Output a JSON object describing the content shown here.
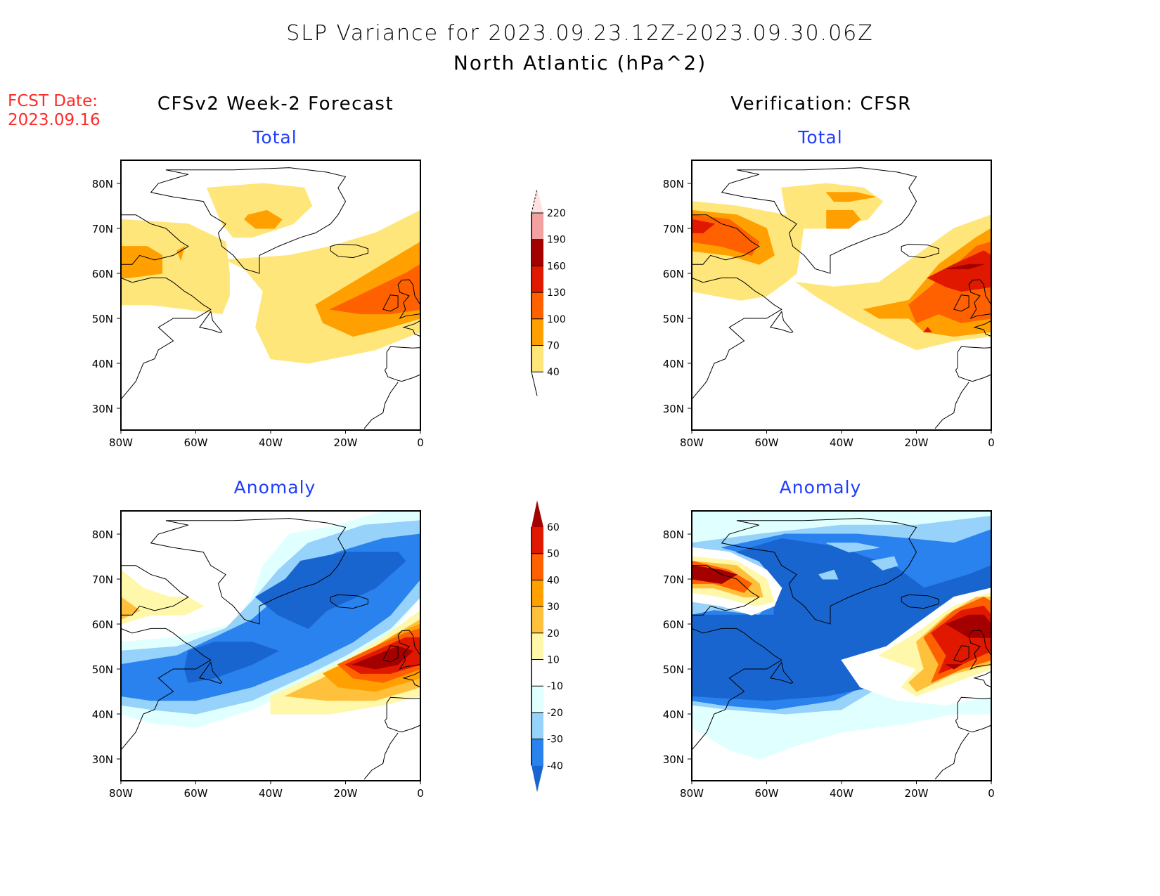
{
  "header": {
    "title_line1": "SLP Variance for 2023.09.23.12Z-2023.09.30.06Z",
    "title_line2": "North Atlantic (hPa^2)",
    "fcst_label": "FCST Date:",
    "fcst_date": "2023.09.16"
  },
  "columns": {
    "left": "CFSv2 Week-2 Forecast",
    "right": "Verification: CFSR"
  },
  "subtitles": {
    "total": "Total",
    "anomaly": "Anomaly"
  },
  "colors": {
    "title_red": "#ff2a2a",
    "subtitle_blue": "#1f3dff"
  },
  "chart_data": [
    {
      "type": "heatmap",
      "name": "forecast-total",
      "title": "Total",
      "region": "North Atlantic",
      "xlim": [
        -80,
        0
      ],
      "ylim": [
        25,
        85
      ],
      "x_ticks": [
        "80W",
        "60W",
        "40W",
        "20W",
        "0"
      ],
      "y_ticks": [
        "30N",
        "40N",
        "50N",
        "60N",
        "70N",
        "80N"
      ],
      "max_level_reached": "100-130",
      "features": [
        {
          "center": "British Isles (~10W, 53N)",
          "level": "100-130"
        },
        {
          "center": "Greenland Sea (~42W, 74N)",
          "level": "70-100"
        },
        {
          "center": "Baffin/Hudson (~75W, 63N)",
          "level": "70-100"
        }
      ]
    },
    {
      "type": "heatmap",
      "name": "verification-total",
      "title": "Total",
      "xlim": [
        -80,
        0
      ],
      "ylim": [
        25,
        85
      ],
      "x_ticks": [
        "80W",
        "60W",
        "40W",
        "20W",
        "0"
      ],
      "y_ticks": [
        "30N",
        "40N",
        "50N",
        "60N",
        "70N",
        "80N"
      ],
      "max_level_reached": "160-190",
      "features": [
        {
          "center": "NE Atlantic (~10W, 62N)",
          "level": "160-190"
        },
        {
          "center": "Baffin Bay (~78W, 72N)",
          "level": "130-160"
        },
        {
          "center": "Greenland (~40W, 75N)",
          "level": "70-100"
        }
      ]
    },
    {
      "type": "heatmap",
      "name": "forecast-anomaly",
      "title": "Anomaly",
      "xlim": [
        -80,
        0
      ],
      "ylim": [
        25,
        85
      ],
      "x_ticks": [
        "80W",
        "60W",
        "40W",
        "20W",
        "0"
      ],
      "y_ticks": [
        "30N",
        "40N",
        "50N",
        "60N",
        "70N",
        "80N"
      ],
      "features": [
        {
          "center": "British Isles (~12W, 52N)",
          "level": ">60"
        },
        {
          "center": "Labrador Sea band (~50W, 52N)",
          "level": "<-40"
        },
        {
          "center": "Iceland (~25W, 67N)",
          "level": "<-40"
        }
      ]
    },
    {
      "type": "heatmap",
      "name": "verification-anomaly",
      "title": "Anomaly",
      "xlim": [
        -80,
        0
      ],
      "ylim": [
        25,
        85
      ],
      "x_ticks": [
        "80W",
        "60W",
        "40W",
        "20W",
        "0"
      ],
      "y_ticks": [
        "30N",
        "40N",
        "50N",
        "60N",
        "70N",
        "80N"
      ],
      "features": [
        {
          "center": "Baffin Bay (~75W, 71N)",
          "level": ">60"
        },
        {
          "center": "NE Atlantic (~10W, 60N)",
          "level": ">60"
        },
        {
          "center": "Central N. Atlantic (~55W, 55N)",
          "level": "<-40"
        }
      ]
    }
  ],
  "colorbars": {
    "total": {
      "labels": [
        "40",
        "70",
        "100",
        "130",
        "160",
        "190",
        "220"
      ],
      "colors": [
        "#ffe67a",
        "#ffa000",
        "#ff6000",
        "#e11800",
        "#a50000",
        "#f2a0a0",
        "#ffe0e0"
      ]
    },
    "anomaly": {
      "labels": [
        "-40",
        "-30",
        "-20",
        "-10",
        "10",
        "20",
        "30",
        "40",
        "50",
        "60"
      ],
      "colors": [
        "#1965d0",
        "#2a82ee",
        "#96d2fa",
        "#e0ffff",
        "#ffffff",
        "#fff7aa",
        "#ffc03c",
        "#ffa000",
        "#ff6000",
        "#e11800",
        "#a50000"
      ]
    }
  }
}
